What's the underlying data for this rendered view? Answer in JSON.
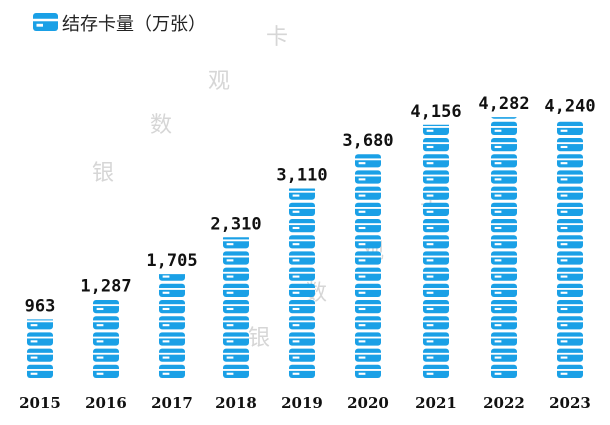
{
  "chart_data": {
    "type": "bar",
    "legend": [
      {
        "name": "结存卡量（万张）",
        "color": "#1aa0e6"
      }
    ],
    "legend_position": "top-left",
    "categories": [
      "2015",
      "2016",
      "2017",
      "2018",
      "2019",
      "2020",
      "2021",
      "2022",
      "2023"
    ],
    "series": [
      {
        "name": "结存卡量（万张）",
        "values": [
          963,
          1287,
          1705,
          2310,
          3110,
          3680,
          4156,
          4282,
          4240
        ]
      }
    ],
    "data_labels": [
      "963",
      "1,287",
      "1,705",
      "2,310",
      "3,110",
      "3,680",
      "4,156",
      "4,282",
      "4,240"
    ],
    "ylim": [
      0,
      4300
    ],
    "grid": false,
    "title": "",
    "xlabel": "",
    "ylabel": ""
  },
  "watermark": "银 数 观 卡",
  "colors": {
    "bar": "#1aa0e6",
    "text": "#111111",
    "watermark": "#d6d6d6"
  }
}
